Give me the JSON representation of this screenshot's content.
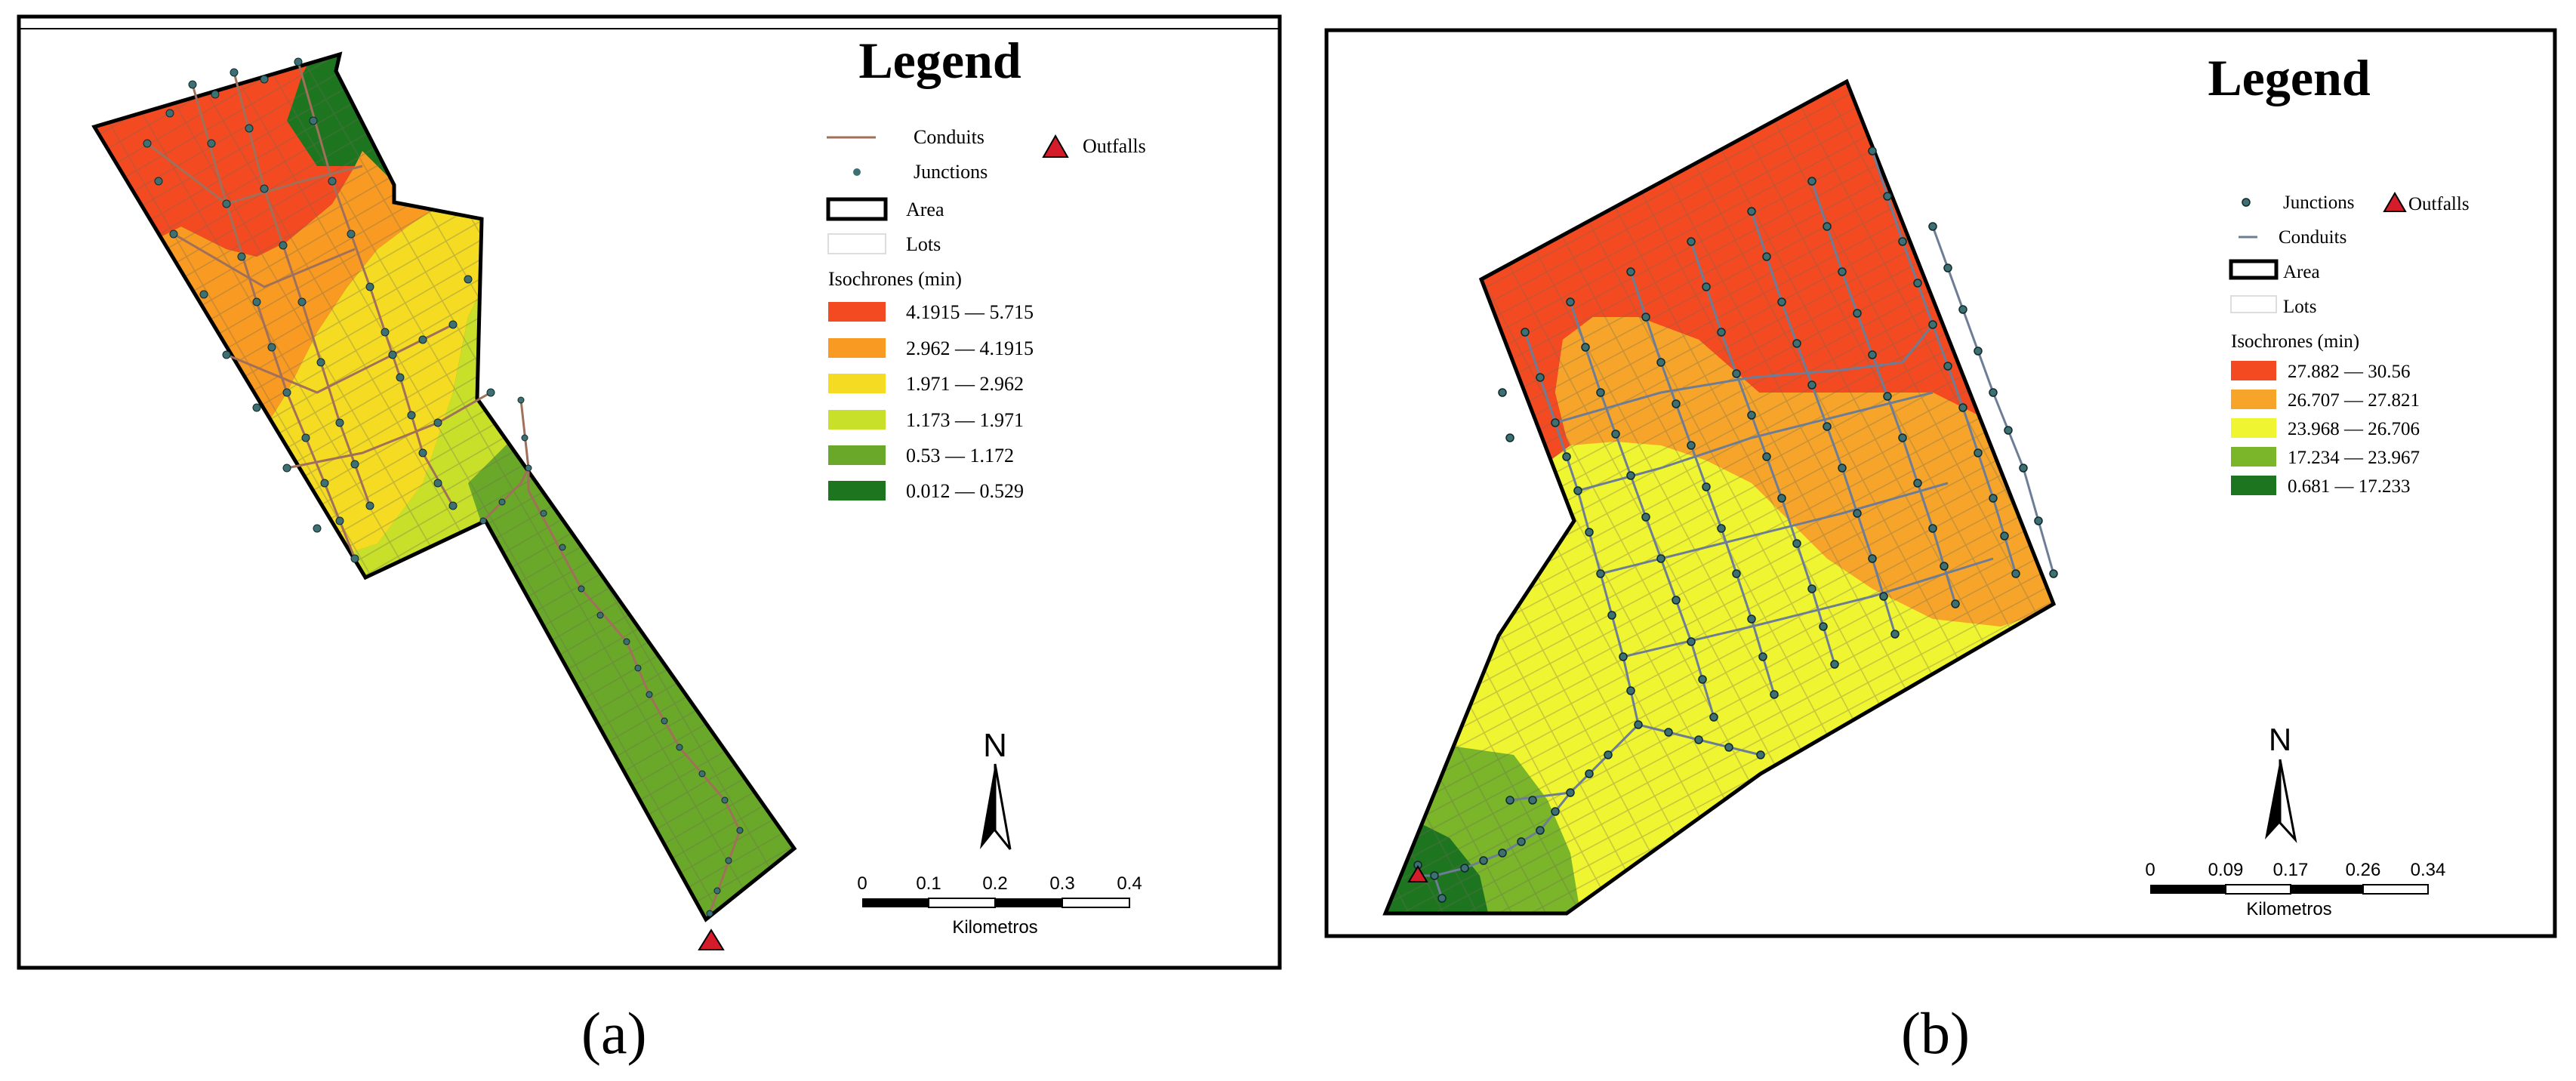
{
  "panel_a": {
    "legend_title": "Legend",
    "legend_items": {
      "conduits": "Conduits",
      "junctions": "Junctions",
      "outfalls": "Outfalls",
      "area": "Area",
      "lots": "Lots",
      "isochrones_title": "Isochrones (min)"
    },
    "isochrone_classes": [
      {
        "label": "4.1915 — 5.715",
        "color": "#f44a22"
      },
      {
        "label": "2.962 — 4.1915",
        "color": "#f99a22"
      },
      {
        "label": "1.971 — 2.962",
        "color": "#f5dc23"
      },
      {
        "label": "1.173 — 1.971",
        "color": "#c8e02a"
      },
      {
        "label": "0.53 — 1.172",
        "color": "#6aa82a"
      },
      {
        "label": "0.012 — 0.529",
        "color": "#1e7520"
      }
    ],
    "north_label": "N",
    "scale_ticks": [
      "0",
      "0.1",
      "0.2",
      "0.3",
      "0.4"
    ],
    "scale_unit": "Kilometros",
    "caption": "(a)"
  },
  "panel_b": {
    "legend_title": "Legend",
    "legend_items": {
      "junctions": "Junctions",
      "outfalls": "Outfalls",
      "conduits": "Conduits",
      "area": "Area",
      "lots": "Lots",
      "isochrones_title": "Isochrones (min)"
    },
    "isochrone_classes": [
      {
        "label": "27.882 — 30.56",
        "color": "#f44a22"
      },
      {
        "label": "26.707 — 27.821",
        "color": "#f7a52a"
      },
      {
        "label": "23.968 — 26.706",
        "color": "#f0f531"
      },
      {
        "label": "17.234 — 23.967",
        "color": "#7ab52a"
      },
      {
        "label": "0.681 — 17.233",
        "color": "#1e7520"
      }
    ],
    "north_label": "N",
    "scale_ticks": [
      "0",
      "0.09",
      "0.17",
      "0.26",
      "0.34"
    ],
    "scale_unit": "Kilometros",
    "caption": "(b)"
  },
  "colors": {
    "frame": "#000000",
    "conduit_a": "#a0705a",
    "conduit_b": "#6d7d96",
    "junction": "#3d6f73",
    "outfall": "#d41c2b"
  }
}
